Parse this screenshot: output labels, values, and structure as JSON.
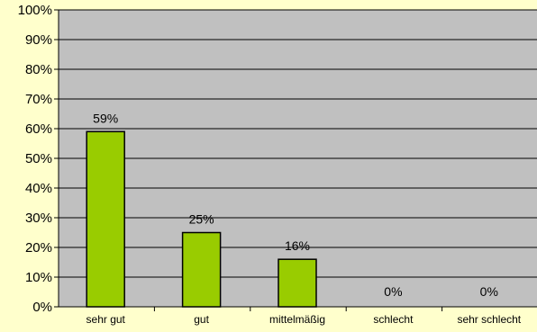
{
  "colors": {
    "page_background": "#ffffcc",
    "plot_background": "#c0c0c0",
    "bar_fill": "#99cc00",
    "bar_stroke": "#000000",
    "gridline": "#000000"
  },
  "chart_data": {
    "type": "bar",
    "title": "",
    "xlabel": "",
    "ylabel": "",
    "categories": [
      "sehr gut",
      "gut",
      "mittelmäßig",
      "schlecht",
      "sehr schlecht"
    ],
    "values": [
      59,
      25,
      16,
      0,
      0
    ],
    "value_labels": [
      "59%",
      "25%",
      "16%",
      "0%",
      "0%"
    ],
    "ylim": [
      0,
      100
    ],
    "y_ticks": [
      "0%",
      "10%",
      "20%",
      "30%",
      "40%",
      "50%",
      "60%",
      "70%",
      "80%",
      "90%",
      "100%"
    ],
    "grid": true,
    "legend": "none"
  }
}
